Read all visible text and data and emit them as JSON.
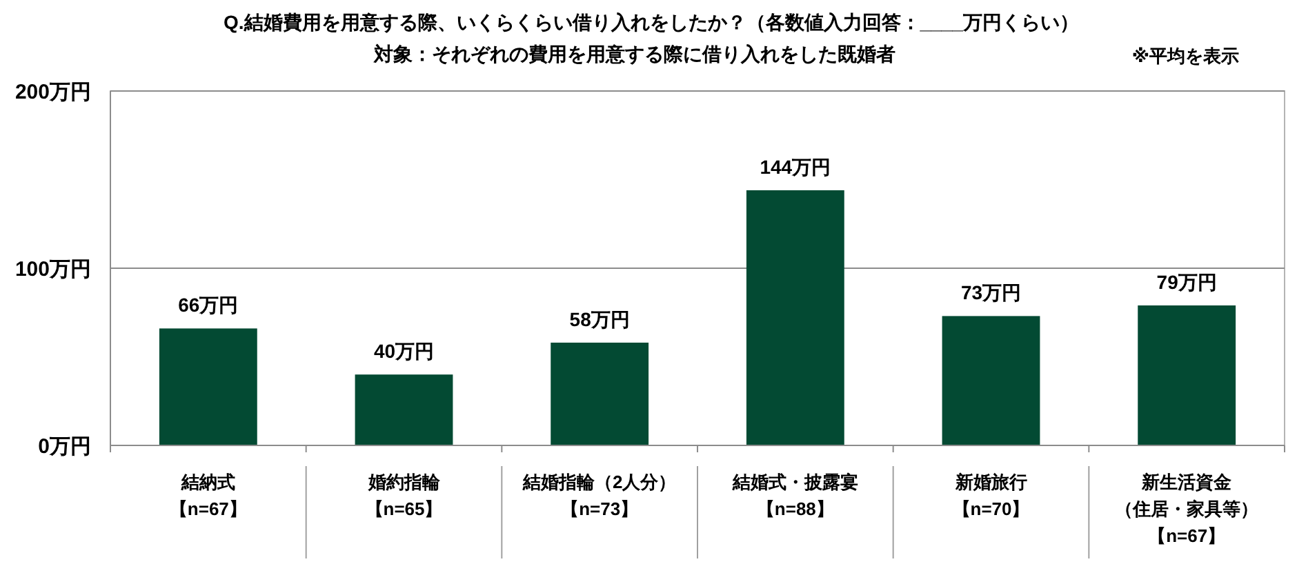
{
  "chart_data": {
    "type": "bar",
    "title": "Q.結婚費用を用意する際、いくらくらい借り入れをしたか？（各数値入力回答：____万円くらい）",
    "subtitle": "対象：それぞれの費用を用意する際に借り入れをした既婚者",
    "annotations": [
      "※平均を表示"
    ],
    "categories": [
      "結納式【n=67】",
      "婚約指輪【n=65】",
      "結婚指輪（2人分）【n=73】",
      "結婚式・披露宴【n=88】",
      "新婚旅行【n=70】",
      "新生活資金（住居・家具等）【n=67】"
    ],
    "values": [
      66,
      40,
      58,
      144,
      73,
      79
    ],
    "color": "#034a33",
    "value_labels": [
      "66万円",
      "40万円",
      "58万円",
      "144万円",
      "73万円",
      "79万円"
    ],
    "ylim": [
      0,
      200
    ],
    "yticks": [
      {
        "value": 0,
        "label": "0万円"
      },
      {
        "value": 100,
        "label": "100万円"
      },
      {
        "value": 200,
        "label": "200万円"
      }
    ],
    "grid": "y"
  }
}
